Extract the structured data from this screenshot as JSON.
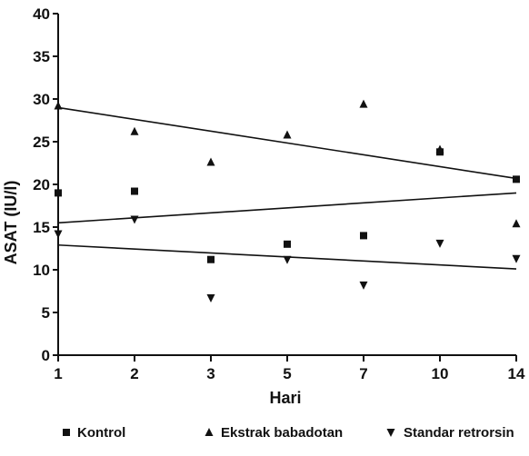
{
  "chart_data": {
    "type": "scatter",
    "title": "",
    "xlabel": "Hari",
    "ylabel": "ASAT (IU/l)",
    "x_tick_labels": [
      "1",
      "2",
      "3",
      "5",
      "7",
      "10",
      "14"
    ],
    "ylim": [
      0,
      40
    ],
    "y_ticks": [
      0,
      5,
      10,
      15,
      20,
      25,
      30,
      35,
      40
    ],
    "grid": false,
    "legend_position": "bottom",
    "series": [
      {
        "name": "Kontrol",
        "marker": "square",
        "points": [
          {
            "x": "1",
            "y": 19
          },
          {
            "x": "2",
            "y": 19.2
          },
          {
            "x": "3",
            "y": 11.2
          },
          {
            "x": "5",
            "y": 13
          },
          {
            "x": "7",
            "y": 14
          },
          {
            "x": "10",
            "y": 23.8
          },
          {
            "x": "14",
            "y": 20.6
          }
        ],
        "trend": {
          "from": {
            "x": "1",
            "y": 15.5
          },
          "to": {
            "x": "14",
            "y": 19
          }
        }
      },
      {
        "name": "Ekstrak babadotan",
        "marker": "triangle-up",
        "points": [
          {
            "x": "1",
            "y": 29.2
          },
          {
            "x": "2",
            "y": 26.2
          },
          {
            "x": "3",
            "y": 22.6
          },
          {
            "x": "5",
            "y": 25.8
          },
          {
            "x": "7",
            "y": 29.4
          },
          {
            "x": "10",
            "y": 24.1
          },
          {
            "x": "14",
            "y": 15.4
          }
        ],
        "trend": {
          "from": {
            "x": "1",
            "y": 29
          },
          "to": {
            "x": "14",
            "y": 20.7
          }
        }
      },
      {
        "name": "Standar retrorsin",
        "marker": "triangle-down",
        "points": [
          {
            "x": "1",
            "y": 14.2
          },
          {
            "x": "2",
            "y": 15.9
          },
          {
            "x": "3",
            "y": 6.7
          },
          {
            "x": "5",
            "y": 11.2
          },
          {
            "x": "7",
            "y": 8.2
          },
          {
            "x": "10",
            "y": 13.1
          },
          {
            "x": "14",
            "y": 11.3
          }
        ],
        "trend": {
          "from": {
            "x": "1",
            "y": 12.9
          },
          "to": {
            "x": "14",
            "y": 10.1
          }
        }
      }
    ]
  }
}
